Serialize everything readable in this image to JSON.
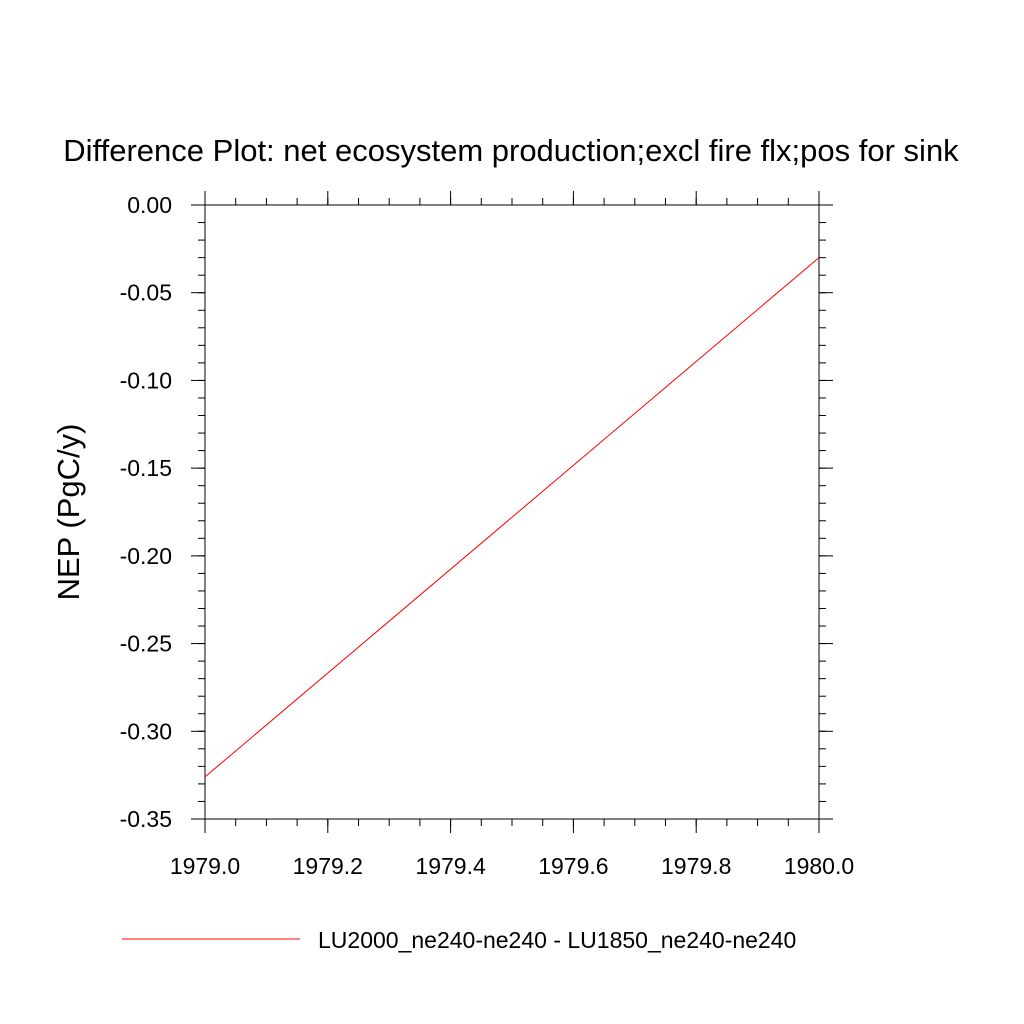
{
  "chart_data": {
    "type": "line",
    "title": "Difference Plot: net ecosystem production;excl fire flx;pos for sink",
    "xlabel": "",
    "ylabel": "NEP  (PgC/y)",
    "xlim": [
      1979.0,
      1980.0
    ],
    "ylim": [
      -0.35,
      0.0
    ],
    "x_ticks": [
      1979.0,
      1979.2,
      1979.4,
      1979.6,
      1979.8,
      1980.0
    ],
    "x_tick_labels": [
      "1979.0",
      "1979.2",
      "1979.4",
      "1979.6",
      "1979.8",
      "1980.0"
    ],
    "y_ticks": [
      0.0,
      -0.05,
      -0.1,
      -0.15,
      -0.2,
      -0.25,
      -0.3,
      -0.35
    ],
    "y_tick_labels": [
      "0.00",
      "-0.05",
      "-0.10",
      "-0.15",
      "-0.20",
      "-0.25",
      "-0.30",
      "-0.35"
    ],
    "grid": false,
    "legend_position": "bottom",
    "series": [
      {
        "name": "LU2000_ne240-ne240 - LU1850_ne240-ne240",
        "color": "#ff0000",
        "x": [
          1979.0,
          1980.0
        ],
        "y": [
          -0.326,
          -0.03
        ]
      }
    ]
  }
}
